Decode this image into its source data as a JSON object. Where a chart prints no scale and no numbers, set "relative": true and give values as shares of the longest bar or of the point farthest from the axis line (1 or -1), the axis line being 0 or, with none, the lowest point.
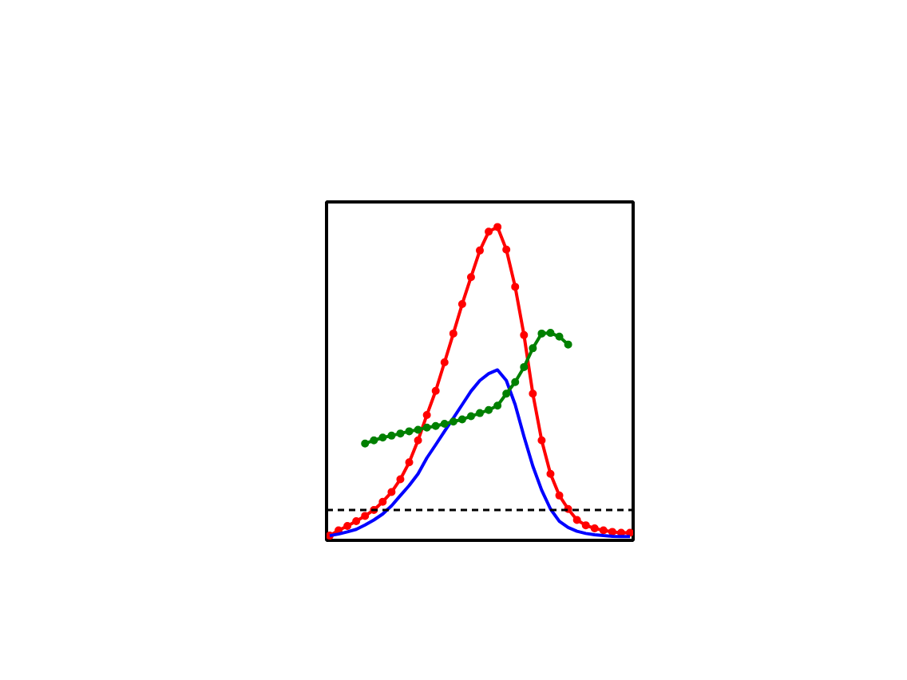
{
  "chart_data": {
    "type": "line",
    "relative": true,
    "grid": false,
    "categories": [
      null,
      null,
      null,
      null,
      null,
      null,
      null,
      null,
      null,
      null,
      null,
      null,
      null,
      null,
      null,
      null,
      null,
      null,
      null,
      null,
      null,
      null,
      null,
      null,
      null,
      null,
      null,
      null,
      null,
      null,
      null,
      null,
      null,
      null,
      null
    ],
    "series": [
      {
        "color": "#ff0000",
        "marker": "circle",
        "values": [
          0.015,
          0.032,
          0.046,
          0.061,
          0.078,
          0.097,
          0.123,
          0.154,
          0.195,
          0.249,
          0.319,
          0.4,
          0.477,
          0.568,
          0.66,
          0.754,
          0.84,
          0.925,
          0.985,
          1.0,
          0.928,
          0.809,
          0.655,
          0.468,
          0.319,
          0.212,
          0.143,
          0.1,
          0.065,
          0.048,
          0.038,
          0.032,
          0.027,
          0.024,
          0.024
        ]
      },
      {
        "color": "#0000ff",
        "marker": "none",
        "values": [
          0.015,
          0.02,
          0.027,
          0.035,
          0.049,
          0.065,
          0.084,
          0.11,
          0.143,
          0.175,
          0.212,
          0.263,
          0.305,
          0.348,
          0.39,
          0.433,
          0.476,
          0.51,
          0.532,
          0.544,
          0.51,
          0.433,
          0.331,
          0.237,
          0.16,
          0.1,
          0.061,
          0.041,
          0.029,
          0.022,
          0.018,
          0.015,
          0.013,
          0.012,
          0.012
        ]
      },
      {
        "color": "#008000",
        "marker": "circle",
        "values": [
          null,
          null,
          null,
          null,
          0.309,
          0.319,
          0.328,
          0.334,
          0.341,
          0.348,
          0.353,
          0.36,
          0.365,
          0.372,
          0.379,
          0.386,
          0.396,
          0.406,
          0.416,
          0.43,
          0.468,
          0.505,
          0.553,
          0.613,
          0.66,
          0.662,
          0.65,
          0.625,
          null,
          null,
          null,
          null,
          null,
          null,
          null
        ]
      }
    ],
    "ref_lines": [
      {
        "axis": "y",
        "value": 0.097,
        "color": "#000000",
        "line_style": "dashed"
      }
    ]
  }
}
